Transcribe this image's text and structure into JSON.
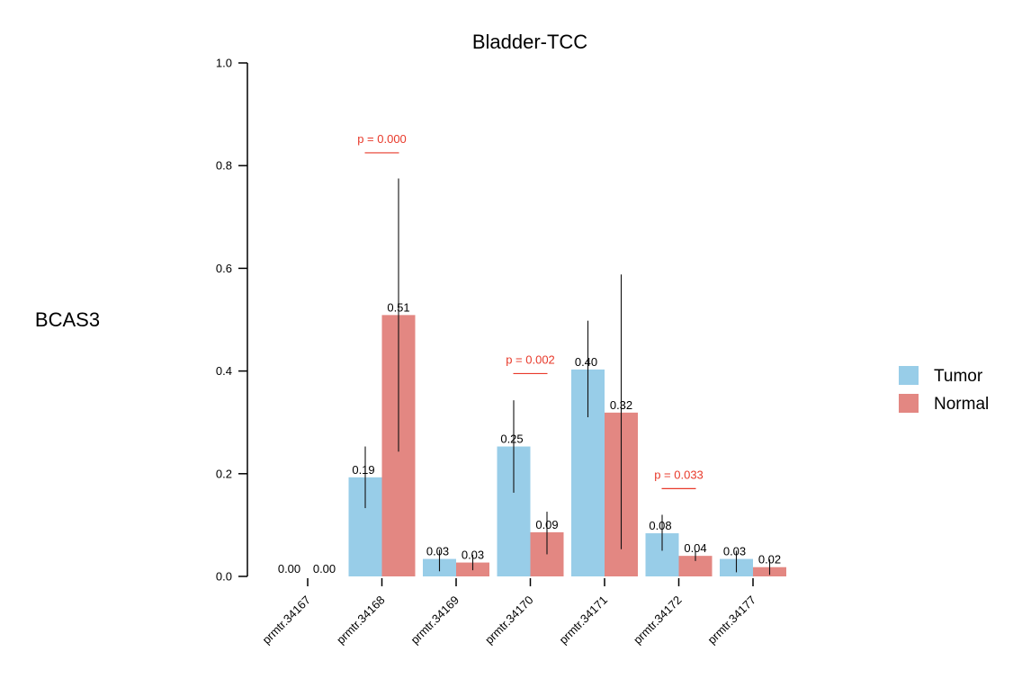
{
  "chart_data": {
    "type": "bar",
    "title": "Bladder-TCC",
    "ylabel": "BCAS3",
    "xlabel": "",
    "ylim": [
      0,
      1.0
    ],
    "yticks": [
      "0.0",
      "0.2",
      "0.4",
      "0.6",
      "0.8",
      "1.0"
    ],
    "categories": [
      "prmtr.34167",
      "prmtr.34168",
      "prmtr.34169",
      "prmtr.34170",
      "prmtr.34171",
      "prmtr.34172",
      "prmtr.34177"
    ],
    "series": [
      {
        "name": "Tumor",
        "color": "#98CDE8",
        "values": [
          0.0,
          0.19,
          0.03,
          0.25,
          0.4,
          0.08,
          0.03
        ],
        "labels": [
          "0.00",
          "0.19",
          "0.03",
          "0.25",
          "0.40",
          "0.08",
          "0.03"
        ],
        "plot_values": [
          0.0,
          0.193,
          0.034,
          0.253,
          0.403,
          0.084,
          0.034
        ],
        "err_low": [
          null,
          0.133,
          0.01,
          0.163,
          0.31,
          0.05,
          0.008
        ],
        "err_high": [
          null,
          0.253,
          0.052,
          0.343,
          0.498,
          0.12,
          0.05
        ]
      },
      {
        "name": "Normal",
        "color": "#E38782",
        "values": [
          0.0,
          0.51,
          0.03,
          0.09,
          0.32,
          0.04,
          0.02
        ],
        "labels": [
          "0.00",
          "0.51",
          "0.03",
          "0.09",
          "0.32",
          "0.04",
          "0.02"
        ],
        "plot_values": [
          0.0,
          0.509,
          0.027,
          0.086,
          0.319,
          0.04,
          0.018
        ],
        "err_low": [
          null,
          0.243,
          0.012,
          0.043,
          0.053,
          0.03,
          0.003
        ],
        "err_high": [
          null,
          0.775,
          0.042,
          0.126,
          0.588,
          0.05,
          0.033
        ]
      }
    ],
    "annotations": [
      {
        "text": "p = 0.000",
        "category_index": 1,
        "y": 0.825,
        "color": "#E8392A"
      },
      {
        "text": "p = 0.002",
        "category_index": 3,
        "y": 0.395,
        "color": "#E8392A"
      },
      {
        "text": "p = 0.033",
        "category_index": 5,
        "y": 0.171,
        "color": "#E8392A"
      }
    ],
    "legend": {
      "position": "right",
      "entries": [
        "Tumor",
        "Normal"
      ]
    },
    "grid": false
  }
}
